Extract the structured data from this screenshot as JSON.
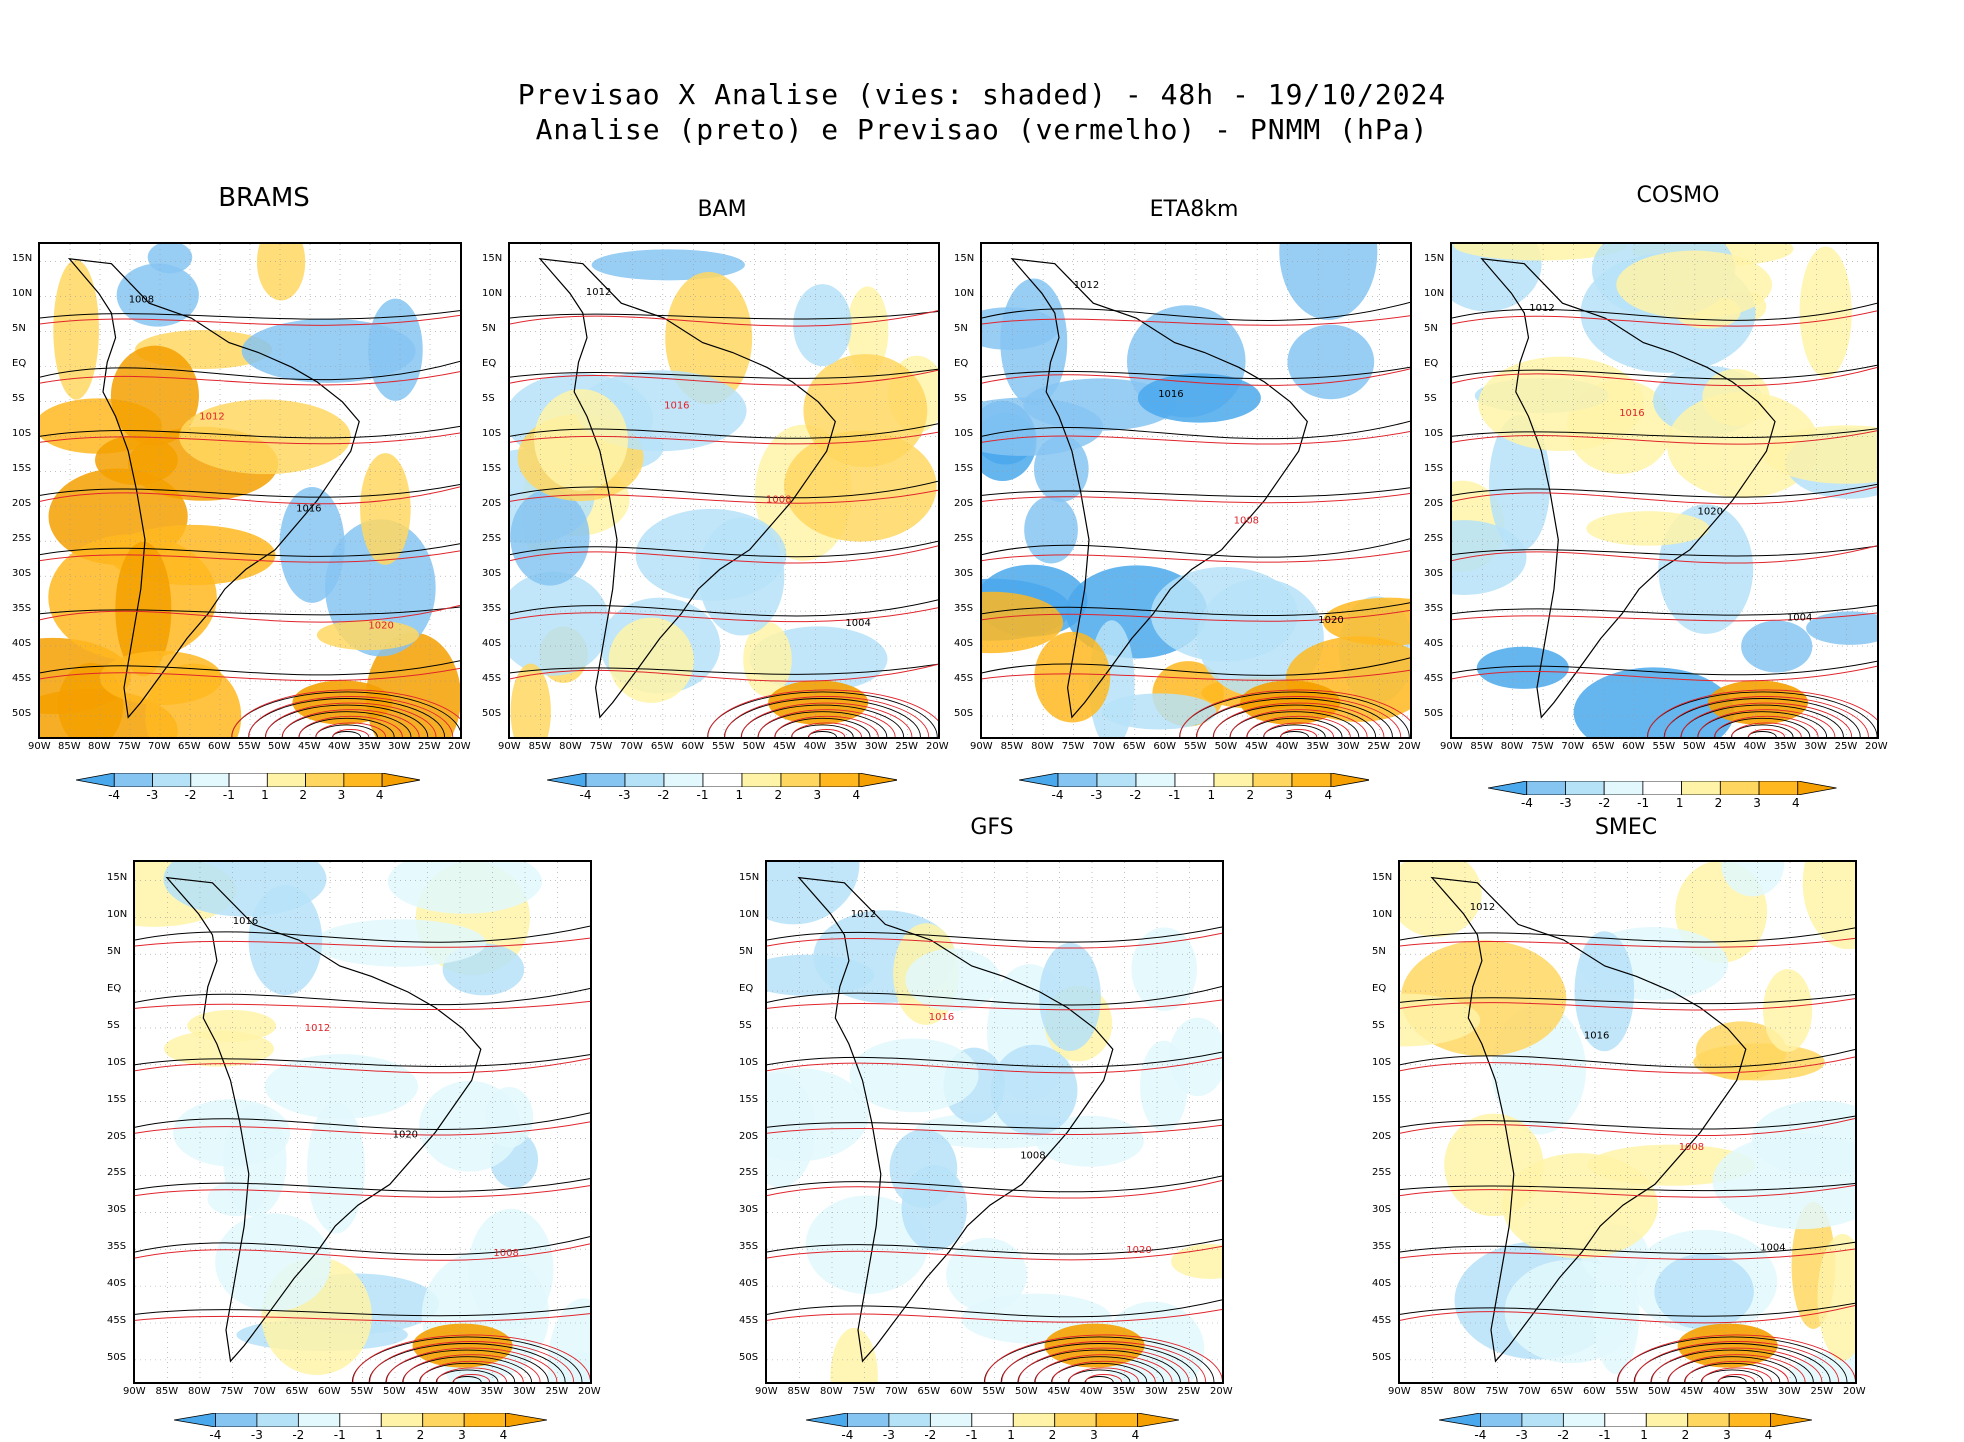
{
  "header": {
    "title_line1": "Previsao X Analise (vies: shaded) - 48h - 19/10/2024",
    "title_line2": "Analise (preto) e Previsao (vermelho) - PNMM (hPa)"
  },
  "axes": {
    "lat_labels": [
      "15N",
      "10N",
      "5N",
      "EQ",
      "5S",
      "10S",
      "15S",
      "20S",
      "25S",
      "30S",
      "35S",
      "40S",
      "45S",
      "50S"
    ],
    "lon_labels": [
      "90W",
      "85W",
      "80W",
      "75W",
      "70W",
      "65W",
      "60W",
      "55W",
      "50W",
      "45W",
      "40W",
      "35W",
      "30W",
      "25W",
      "20W"
    ]
  },
  "colorbar": {
    "labels": [
      "-4",
      "-3",
      "-2",
      "-1",
      "1",
      "2",
      "3",
      "4"
    ],
    "colors": [
      "#4aa8ec",
      "#86c4f2",
      "#b6e2f8",
      "#e2f8fd",
      "#ffffff",
      "#fff3a8",
      "#ffd760",
      "#ffb820",
      "#f5a000"
    ]
  },
  "colors": {
    "analysis_contour": "#000000",
    "forecast_contour": "#e0242b",
    "grid": "#9a9a9a"
  },
  "panels": [
    {
      "id": "brams",
      "title": "BRAMS",
      "labels": [
        {
          "t": "1008",
          "c": "k"
        },
        {
          "t": "1012",
          "c": "r"
        },
        {
          "t": "1016",
          "c": "k"
        },
        {
          "t": "1020",
          "c": "r"
        }
      ],
      "bias": "warm-west"
    },
    {
      "id": "bam",
      "title": "BAM",
      "labels": [
        {
          "t": "1012",
          "c": "k"
        },
        {
          "t": "1016",
          "c": "r"
        },
        {
          "t": "1008",
          "c": "r"
        },
        {
          "t": "1004",
          "c": "k"
        }
      ],
      "bias": "mixed"
    },
    {
      "id": "eta8km",
      "title": "ETA8km",
      "labels": [
        {
          "t": "1012",
          "c": "k"
        },
        {
          "t": "1016",
          "c": "k"
        },
        {
          "t": "1008",
          "c": "r"
        },
        {
          "t": "1020",
          "c": "k"
        }
      ],
      "bias": "cold-north"
    },
    {
      "id": "cosmo",
      "title": "COSMO",
      "labels": [
        {
          "t": "1012",
          "c": "k"
        },
        {
          "t": "1016",
          "c": "r"
        },
        {
          "t": "1020",
          "c": "k"
        },
        {
          "t": "1004",
          "c": "k"
        }
      ],
      "bias": "mixed-cold"
    },
    {
      "id": "panel5",
      "title": "",
      "labels": [
        {
          "t": "1016",
          "c": "k"
        },
        {
          "t": "1012",
          "c": "r"
        },
        {
          "t": "1020",
          "c": "k"
        },
        {
          "t": "1008",
          "c": "r"
        }
      ],
      "bias": "light"
    },
    {
      "id": "gfs",
      "title": "GFS",
      "labels": [
        {
          "t": "1012",
          "c": "k"
        },
        {
          "t": "1016",
          "c": "r"
        },
        {
          "t": "1008",
          "c": "k"
        },
        {
          "t": "1020",
          "c": "r"
        }
      ],
      "bias": "light"
    },
    {
      "id": "smec",
      "title": "SMEC",
      "labels": [
        {
          "t": "1012",
          "c": "k"
        },
        {
          "t": "1016",
          "c": "k"
        },
        {
          "t": "1008",
          "c": "r"
        },
        {
          "t": "1004",
          "c": "k"
        }
      ],
      "bias": "light-warm"
    }
  ]
}
